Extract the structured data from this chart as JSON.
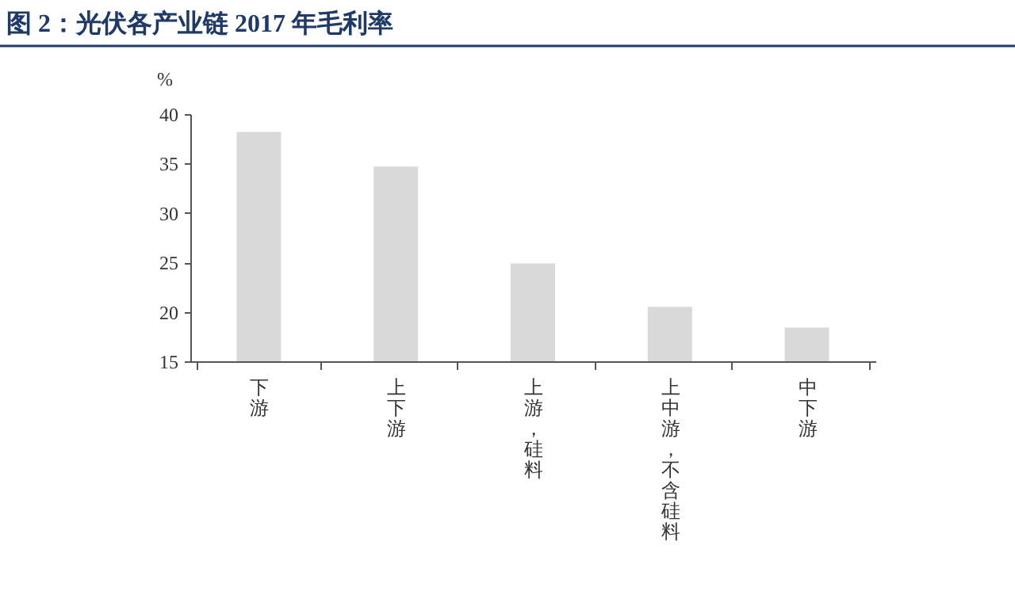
{
  "chart_data": {
    "type": "bar",
    "title": "图 2：光伏各产业链 2017 年毛利率",
    "ylabel": "%",
    "categories": [
      "下游",
      "上下游",
      "上游，硅料",
      "上中游，不含硅料",
      "中下游"
    ],
    "values": [
      38.2,
      34.7,
      24.9,
      20.5,
      18.4
    ],
    "color": "#d9d9d9",
    "ylim": [
      15,
      40
    ],
    "yticks": [
      15,
      20,
      25,
      30,
      35,
      40
    ],
    "grid": false
  }
}
